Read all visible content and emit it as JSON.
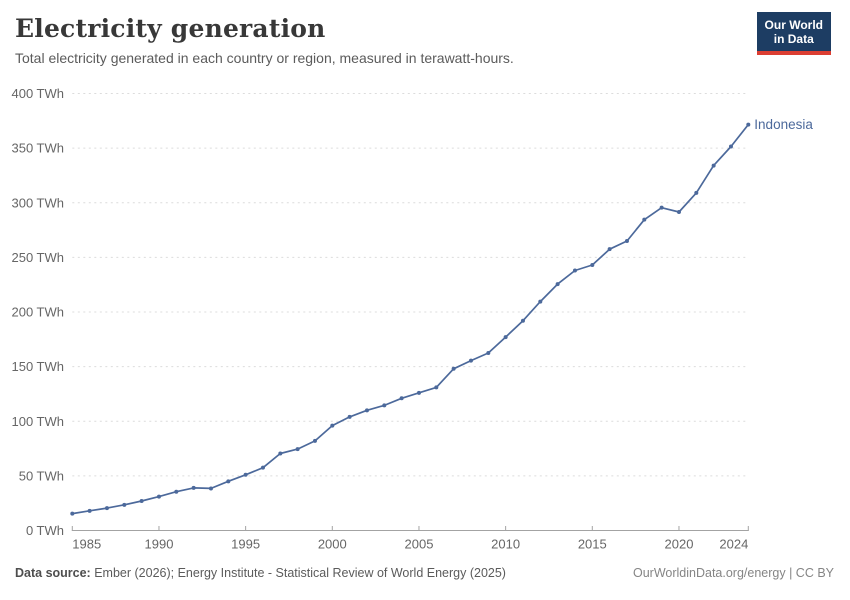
{
  "header": {
    "title": "Electricity generation",
    "subtitle": "Total electricity generated in each country or region, measured in terawatt-hours.",
    "logo_line1": "Our World",
    "logo_line2": "in Data"
  },
  "chart_data": {
    "type": "line",
    "title": "Electricity generation",
    "ylabel": "",
    "xlabel": "",
    "unit_suffix": " TWh",
    "xlim": [
      1985,
      2024
    ],
    "ylim": [
      0,
      400
    ],
    "x_ticks": [
      1985,
      1990,
      1995,
      2000,
      2005,
      2010,
      2015,
      2020,
      2024
    ],
    "y_ticks": [
      0,
      50,
      100,
      150,
      200,
      250,
      300,
      350,
      400
    ],
    "grid": "dashed-horizontal",
    "legend": "end-of-line-label",
    "x": [
      1985,
      1986,
      1987,
      1988,
      1989,
      1990,
      1991,
      1992,
      1993,
      1994,
      1995,
      1996,
      1997,
      1998,
      1999,
      2000,
      2001,
      2002,
      2003,
      2004,
      2005,
      2006,
      2007,
      2008,
      2009,
      2010,
      2011,
      2012,
      2013,
      2014,
      2015,
      2016,
      2017,
      2018,
      2019,
      2020,
      2021,
      2022,
      2023,
      2024
    ],
    "series": [
      {
        "name": "Indonesia",
        "color": "#4c699b",
        "values": [
          15.5,
          18,
          20.5,
          23.5,
          27,
          31,
          35.5,
          39,
          38.5,
          45,
          51,
          57.5,
          70.5,
          74.5,
          82,
          96,
          104,
          110,
          114.5,
          121,
          126,
          131,
          148,
          155.5,
          162.5,
          177,
          192,
          209.5,
          225.5,
          238,
          243,
          257.5,
          265,
          284.5,
          295.5,
          291.5,
          309,
          334,
          351.5,
          371.5
        ]
      }
    ],
    "colors": {
      "grid": "#dcdcdc",
      "axis": "#a3a3a3",
      "tick_text": "#666666"
    }
  },
  "footer": {
    "source_label": "Data source:",
    "source_text": " Ember (2026); Energy Institute - Statistical Review of World Energy (2025)",
    "credit": "OurWorldinData.org/energy | CC BY"
  }
}
